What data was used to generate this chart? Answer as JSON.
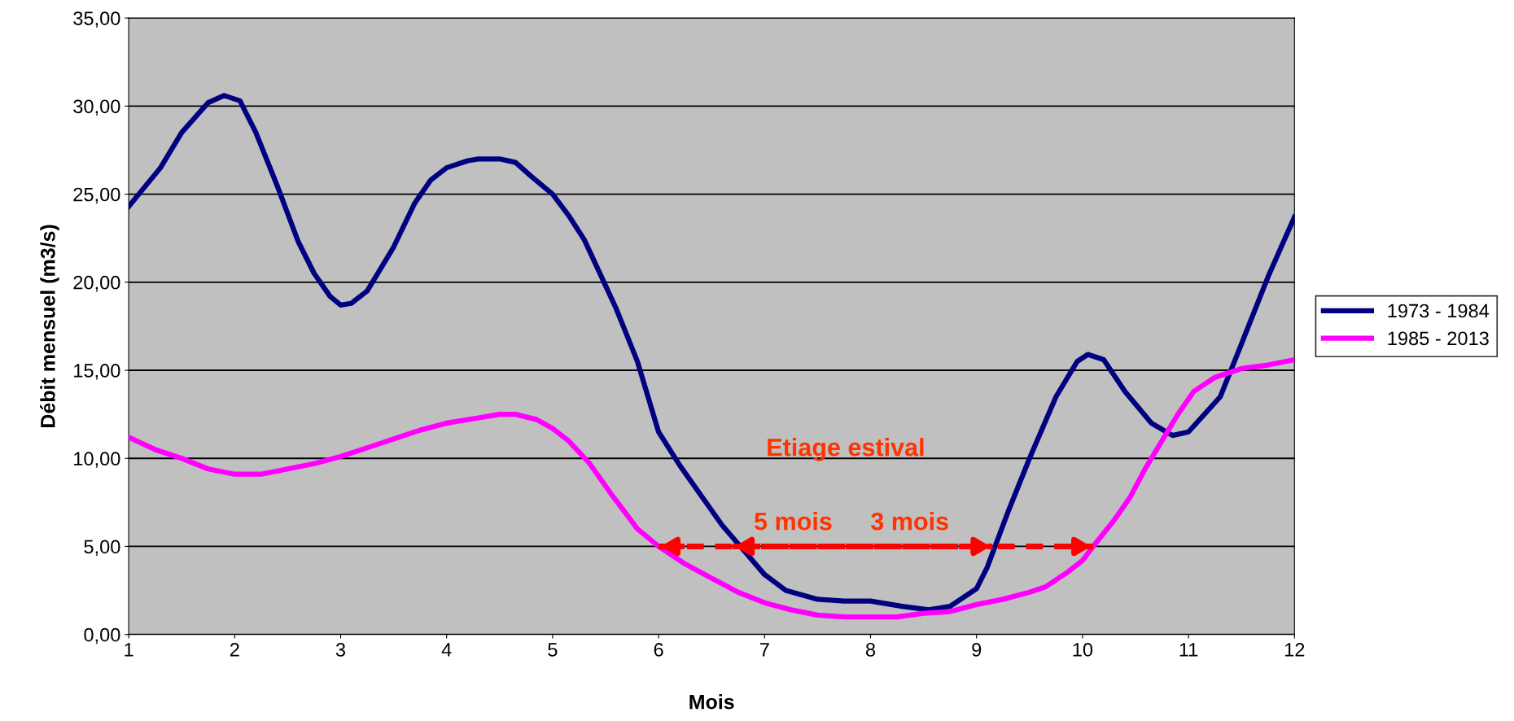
{
  "chart_data": {
    "type": "line",
    "xlabel": "Mois",
    "ylabel": "Débit mensuel (m3/s)",
    "xlim": [
      1,
      12
    ],
    "xticks": [
      1,
      2,
      3,
      4,
      5,
      6,
      7,
      8,
      9,
      10,
      11,
      12
    ],
    "ylim": [
      0,
      35
    ],
    "yticks": [
      {
        "value": 0,
        "label": "0,00"
      },
      {
        "value": 5,
        "label": "5,00"
      },
      {
        "value": 10,
        "label": "10,00"
      },
      {
        "value": 15,
        "label": "15,00"
      },
      {
        "value": 20,
        "label": "20,00"
      },
      {
        "value": 25,
        "label": "25,00"
      },
      {
        "value": 30,
        "label": "30,00"
      },
      {
        "value": 35,
        "label": "35,00"
      }
    ],
    "grid": "y",
    "legend": "right",
    "marker": "none",
    "line_style": "solid",
    "series": [
      {
        "name": "1973 - 1984",
        "color": "#000080",
        "x": [
          1.0,
          1.3,
          1.5,
          1.75,
          1.9,
          2.05,
          2.2,
          2.4,
          2.6,
          2.75,
          2.9,
          3.0,
          3.1,
          3.25,
          3.5,
          3.7,
          3.85,
          4.0,
          4.2,
          4.3,
          4.5,
          4.65,
          4.8,
          5.0,
          5.15,
          5.3,
          5.5,
          5.6,
          5.8,
          6.0,
          6.2,
          6.4,
          6.6,
          6.8,
          7.0,
          7.2,
          7.5,
          7.75,
          8.0,
          8.3,
          8.55,
          8.75,
          9.0,
          9.1,
          9.3,
          9.5,
          9.75,
          9.95,
          10.05,
          10.2,
          10.4,
          10.65,
          10.85,
          11.0,
          11.3,
          11.5,
          11.75,
          12.0
        ],
        "values": [
          24.3,
          26.5,
          28.5,
          30.2,
          30.6,
          30.3,
          28.5,
          25.5,
          22.3,
          20.5,
          19.2,
          18.7,
          18.8,
          19.5,
          22.0,
          24.5,
          25.8,
          26.5,
          26.9,
          27.0,
          27.0,
          26.8,
          26.0,
          25.0,
          23.8,
          22.4,
          19.8,
          18.5,
          15.5,
          11.5,
          9.6,
          7.9,
          6.2,
          4.8,
          3.4,
          2.5,
          2.0,
          1.9,
          1.9,
          1.6,
          1.4,
          1.6,
          2.6,
          3.8,
          7.0,
          10.0,
          13.5,
          15.5,
          15.9,
          15.6,
          13.8,
          12.0,
          11.3,
          11.5,
          13.5,
          16.5,
          20.3,
          23.7
        ]
      },
      {
        "name": "1985 - 2013",
        "color": "#ff00ff",
        "x": [
          1.0,
          1.25,
          1.5,
          1.75,
          2.0,
          2.25,
          2.5,
          2.75,
          3.0,
          3.3,
          3.75,
          4.0,
          4.3,
          4.5,
          4.65,
          4.85,
          5.0,
          5.15,
          5.35,
          5.55,
          5.8,
          6.0,
          6.25,
          6.5,
          6.75,
          7.0,
          7.25,
          7.5,
          7.75,
          8.0,
          8.25,
          8.5,
          8.75,
          9.0,
          9.25,
          9.5,
          9.65,
          9.85,
          10.0,
          10.1,
          10.3,
          10.45,
          10.6,
          10.75,
          10.9,
          11.05,
          11.25,
          11.5,
          11.75,
          12.0
        ],
        "values": [
          11.2,
          10.5,
          10.0,
          9.4,
          9.1,
          9.1,
          9.4,
          9.7,
          10.1,
          10.7,
          11.6,
          12.0,
          12.3,
          12.5,
          12.5,
          12.2,
          11.7,
          11.0,
          9.7,
          8.0,
          6.0,
          5.0,
          4.0,
          3.2,
          2.4,
          1.8,
          1.4,
          1.1,
          1.0,
          1.0,
          1.0,
          1.2,
          1.3,
          1.7,
          2.0,
          2.4,
          2.7,
          3.5,
          4.2,
          5.0,
          6.5,
          7.8,
          9.5,
          11.0,
          12.5,
          13.8,
          14.6,
          15.1,
          15.3,
          15.6
        ]
      },
      {
        "type": "line",
        "color": "#ff0000",
        "line_style": "dashed",
        "x": [
          6.0,
          10.1
        ],
        "values": [
          5,
          5
        ]
      },
      {
        "type": "line",
        "color": "#ff0000",
        "line_style": "dashed",
        "x": [
          6.7,
          9.15
        ],
        "values": [
          5,
          5
        ]
      }
    ],
    "annotations": [
      "Etiage estival",
      "5 mois",
      "3 mois"
    ]
  }
}
